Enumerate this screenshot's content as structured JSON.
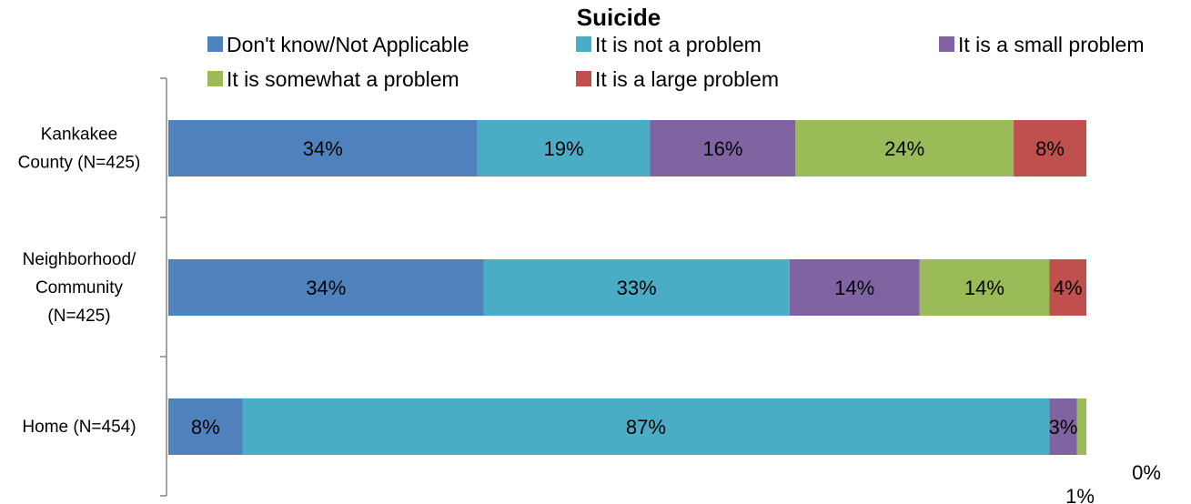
{
  "chart_data": {
    "type": "bar",
    "orientation": "horizontal",
    "stacked": true,
    "title": "Suicide",
    "legend_position": "top",
    "categories": [
      [
        "Kankakee",
        "County (N=425)"
      ],
      [
        "Neighborhood/",
        "Community",
        "(N=425)"
      ],
      [
        "Home (N=454)"
      ]
    ],
    "series": [
      {
        "name": "Don't know/Not Applicable",
        "color": "#4F81BD",
        "values": [
          34,
          34,
          8
        ],
        "labels": [
          "34%",
          "34%",
          "8%"
        ]
      },
      {
        "name": "It is not a problem",
        "color": "#4BACC6",
        "values": [
          19,
          33,
          87
        ],
        "labels": [
          "19%",
          "33%",
          "87%"
        ]
      },
      {
        "name": "It is a small problem",
        "color": "#8064A2",
        "values": [
          16,
          14,
          3
        ],
        "labels": [
          "16%",
          "14%",
          "3%"
        ]
      },
      {
        "name": "It is somewhat a problem",
        "color": "#9BBB59",
        "values": [
          24,
          14,
          1
        ],
        "labels": [
          "24%",
          "14%",
          "1%"
        ]
      },
      {
        "name": "It is a large problem",
        "color": "#C0504D",
        "values": [
          8,
          4,
          0
        ],
        "labels": [
          "8%",
          "4%",
          "0%"
        ]
      }
    ],
    "xlim": [
      0,
      100
    ],
    "grid": false
  }
}
